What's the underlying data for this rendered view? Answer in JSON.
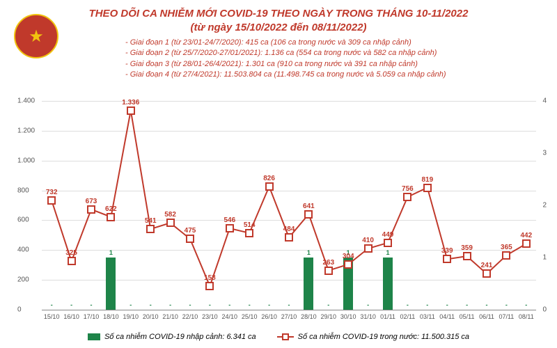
{
  "title_line1": "THEO DÕI CA NHIỄM MỚI COVID-19 THEO NGÀY TRONG THÁNG 10-11/2022",
  "title_line2": "(từ ngày 15/10/2022 đến 08/11/2022)",
  "notes": [
    "- Giai đoạn 1 (từ 23/01-24/7/2020): 415 ca (106 ca trong nước và 309 ca nhập cảnh)",
    "- Giai đoạn 2 (từ 25/7/2020-27/01/2021): 1.136 ca (554 ca trong nước và 582 ca nhập cảnh)",
    "- Giai đoạn 3 (từ 28/01-26/4/2021): 1.301 ca (910 ca trong nước và 391 ca nhập cảnh)",
    "- Giai đoạn 4 (từ 27/4/2021): 11.503.804 ca (11.498.745 ca trong nước và 5.059 ca nhập cảnh)"
  ],
  "chart": {
    "type": "combo",
    "y_left": {
      "min": 0,
      "max": 1400,
      "step": 200
    },
    "y_right": {
      "min": 0,
      "max": 4,
      "step": 1
    },
    "dates": [
      "15/10",
      "16/10",
      "17/10",
      "18/10",
      "19/10",
      "20/10",
      "21/10",
      "22/10",
      "23/10",
      "24/10",
      "25/10",
      "26/10",
      "27/10",
      "28/10",
      "29/10",
      "30/10",
      "31/10",
      "01/11",
      "02/11",
      "03/11",
      "04/11",
      "05/11",
      "06/11",
      "07/11",
      "08/11"
    ],
    "bars": {
      "label": "Số ca nhiễm COVID-19 nhập cảnh: 6.341 ca",
      "color": "#1e8449",
      "values": [
        0,
        0,
        0,
        1,
        0,
        0,
        0,
        0,
        0,
        0,
        0,
        0,
        0,
        1,
        0,
        1,
        0,
        1,
        0,
        0,
        0,
        0,
        0,
        0,
        0
      ],
      "show_labels": [
        "-",
        "-",
        "-",
        "1",
        "-",
        "-",
        "-",
        "-",
        "-",
        "-",
        "-",
        "-",
        "-",
        "1",
        "-",
        "1",
        "-",
        "1",
        "-",
        "-",
        "-",
        "-",
        "-",
        "-",
        "-"
      ]
    },
    "line": {
      "label": "Số ca nhiễm COVID-19 trong nước: 11.500.315 ca",
      "color": "#c0392b",
      "values": [
        732,
        325,
        673,
        622,
        1336,
        541,
        582,
        475,
        158,
        546,
        514,
        826,
        484,
        641,
        263,
        304,
        410,
        449,
        756,
        819,
        339,
        359,
        241,
        365,
        442
      ]
    },
    "background_color": "#ffffff",
    "grid_color": "#dddddd"
  }
}
